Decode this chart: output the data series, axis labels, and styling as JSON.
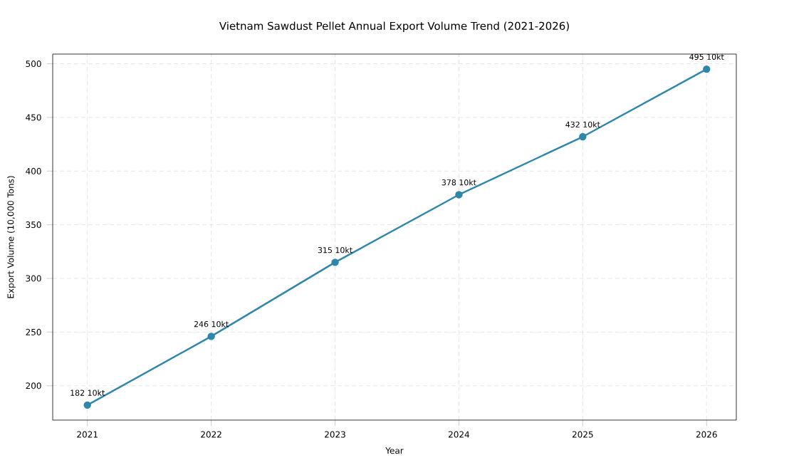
{
  "chart_data": {
    "type": "line",
    "title": "Vietnam Sawdust Pellet Annual Export Volume Trend (2021-2026)",
    "xlabel": "Year",
    "ylabel": "Export Volume (10,000 Tons)",
    "x": [
      2021,
      2022,
      2023,
      2024,
      2025,
      2026
    ],
    "series": [
      {
        "color": "#2e86ab",
        "values": [
          182,
          246,
          315,
          378,
          432,
          495
        ],
        "value_labels": [
          "182 10kt",
          "246 10kt",
          "315 10kt",
          "378 10kt",
          "432 10kt",
          "495 10kt"
        ]
      }
    ],
    "xlim": [
      2020.72,
      2026.24
    ],
    "ylim": [
      168,
      509
    ],
    "xticks": [
      2021,
      2022,
      2023,
      2024,
      2025,
      2026
    ],
    "yticks": [
      200,
      250,
      300,
      350,
      400,
      450,
      500
    ],
    "grid": true,
    "marker": "circle",
    "line_style": "solid"
  }
}
